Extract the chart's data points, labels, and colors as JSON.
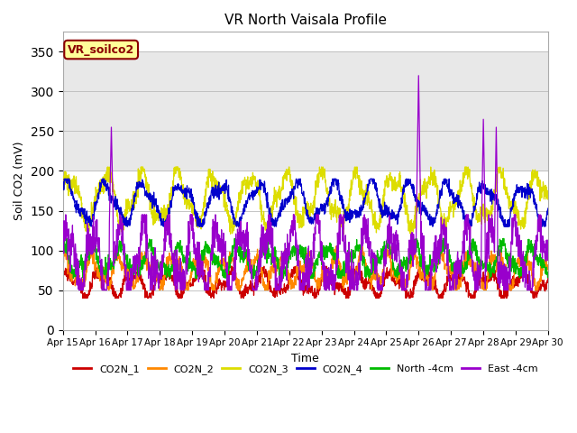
{
  "title": "VR North Vaisala Profile",
  "xlabel": "Time",
  "ylabel": "Soil CO2 (mV)",
  "ylim": [
    0,
    375
  ],
  "yticks": [
    0,
    50,
    100,
    150,
    200,
    250,
    300,
    350
  ],
  "xtick_labels": [
    "Apr 15",
    "Apr 16",
    "Apr 17",
    "Apr 18",
    "Apr 19",
    "Apr 20",
    "Apr 21",
    "Apr 22",
    "Apr 23",
    "Apr 24",
    "Apr 25",
    "Apr 26",
    "Apr 27",
    "Apr 28",
    "Apr 29",
    "Apr 30"
  ],
  "legend_label": "VR_soilco2",
  "legend_bg": "#ffff99",
  "legend_border": "#8b0000",
  "series_names": [
    "CO2N_1",
    "CO2N_2",
    "CO2N_3",
    "CO2N_4",
    "North -4cm",
    "East -4cm"
  ],
  "series_colors": [
    "#cc0000",
    "#ff8800",
    "#dddd00",
    "#0000cc",
    "#00bb00",
    "#9900cc"
  ],
  "shaded_region": [
    200,
    350
  ],
  "shaded_color": "#e8e8e8"
}
